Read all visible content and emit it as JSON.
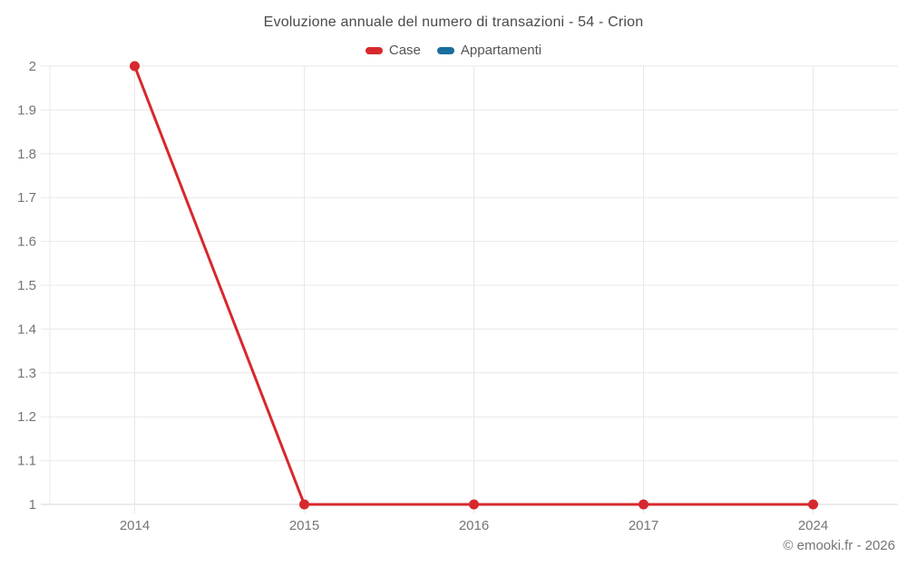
{
  "chart_data": {
    "type": "line",
    "title": "Evoluzione annuale del numero di transazioni - 54 - Crion",
    "categories": [
      "2014",
      "2015",
      "2016",
      "2017",
      "2024"
    ],
    "series": [
      {
        "name": "Case",
        "color": "#d7282d",
        "values": [
          2,
          1,
          1,
          1,
          1
        ]
      },
      {
        "name": "Appartamenti",
        "color": "#1a6d9e",
        "values": []
      }
    ],
    "xlabel": "",
    "ylabel": "",
    "ylim": [
      1,
      2
    ],
    "ytick_labels": [
      "2",
      "1.9",
      "1.8",
      "1.7",
      "1.6",
      "1.5",
      "1.4",
      "1.3",
      "1.2",
      "1.1",
      "1"
    ],
    "grid": true,
    "legend_position": "top",
    "colors": {
      "gridline": "#e8e8e8",
      "baseline": "#d4d4d4",
      "tick_label": "#757575"
    }
  },
  "footer": {
    "copyright": "© emooki.fr - 2026"
  }
}
